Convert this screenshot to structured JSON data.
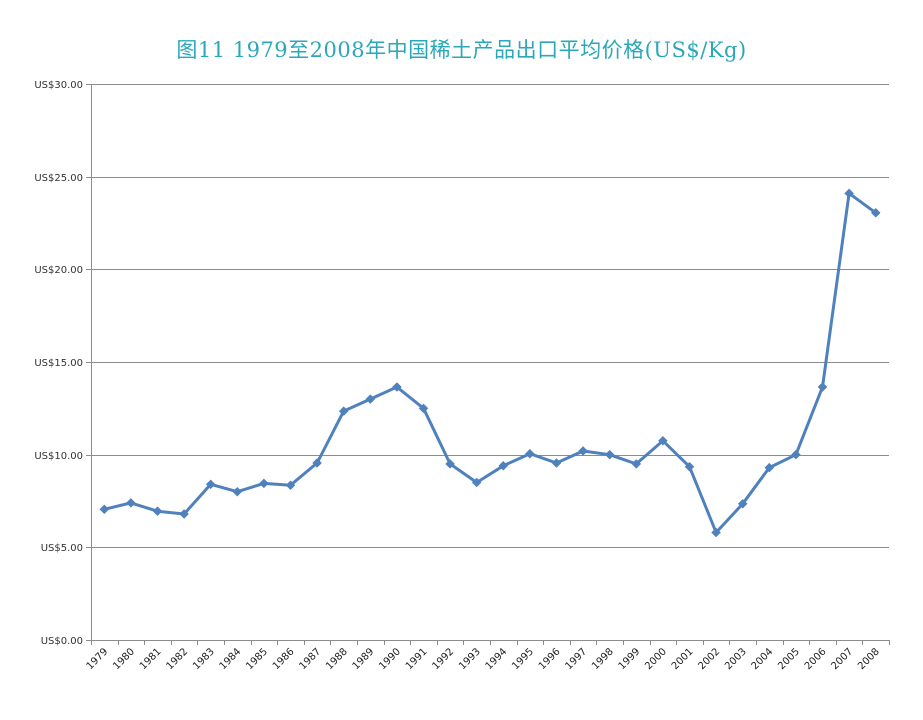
{
  "chart_data": {
    "type": "line",
    "title": "图11  1979至2008年中国稀土产品出口平均价格(US$/Kg)",
    "xlabel": "",
    "ylabel": "",
    "ylim": [
      0,
      30
    ],
    "yticks": [
      0,
      5,
      10,
      15,
      20,
      25,
      30
    ],
    "ytick_labels": [
      "US$0.00",
      "US$5.00",
      "US$10.00",
      "US$15.00",
      "US$20.00",
      "US$25.00",
      "US$30.00"
    ],
    "grid": "horizontal",
    "legend": "none",
    "colors": {
      "line": "#4f81bd",
      "title": "#2aa7b8",
      "grid": "#8c8c8c"
    },
    "categories": [
      "1979",
      "1980",
      "1981",
      "1982",
      "1983",
      "1984",
      "1985",
      "1986",
      "1987",
      "1988",
      "1989",
      "1990",
      "1991",
      "1992",
      "1993",
      "1994",
      "1995",
      "1996",
      "1997",
      "1998",
      "1999",
      "2000",
      "2001",
      "2002",
      "2003",
      "2004",
      "2005",
      "2006",
      "2007",
      "2008"
    ],
    "series": [
      {
        "values": [
          7.05,
          7.4,
          6.95,
          6.8,
          8.4,
          8.0,
          8.45,
          8.35,
          9.55,
          12.35,
          13.0,
          13.65,
          12.5,
          9.5,
          8.5,
          9.4,
          10.05,
          9.55,
          10.2,
          10.0,
          9.5,
          10.75,
          9.35,
          5.8,
          7.35,
          9.3,
          10.0,
          13.65,
          24.1,
          23.05
        ]
      }
    ]
  }
}
